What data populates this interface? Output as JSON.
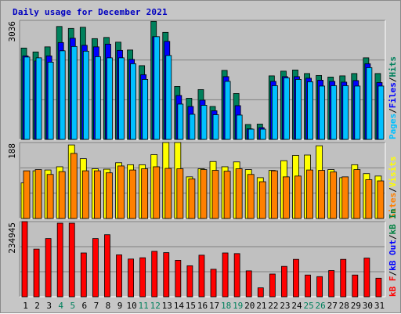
{
  "title": "Daily usage for December 2021",
  "colors": {
    "hits": "#00805c",
    "files": "#0000ff",
    "pages": "#00c0ff",
    "visits": "#ffff00",
    "sites": "#ff8000",
    "kbin": "#008040",
    "kbout": "#0000ff",
    "kbf": "#ff0000",
    "weekend_day": "#00805c",
    "weekday": "#000000"
  },
  "chart_data": [
    {
      "type": "bar",
      "categories": [
        "1",
        "2",
        "3",
        "4",
        "5",
        "6",
        "7",
        "8",
        "9",
        "10",
        "11",
        "12",
        "13",
        "14",
        "15",
        "16",
        "17",
        "18",
        "19",
        "20",
        "21",
        "22",
        "23",
        "24",
        "25",
        "26",
        "27",
        "28",
        "29",
        "30",
        "31"
      ],
      "weekend_days": [
        "4",
        "5",
        "11",
        "12",
        "18",
        "19",
        "25",
        "26"
      ],
      "ymax_label": "3036",
      "ylim": [
        0,
        3036
      ],
      "legend": [
        {
          "label": "Pages",
          "color": "#00c0ff"
        },
        {
          "label": "/",
          "color": "#000000"
        },
        {
          "label": "Files",
          "color": "#0000ff"
        },
        {
          "label": "/",
          "color": "#000000"
        },
        {
          "label": "Hits",
          "color": "#00805c"
        }
      ],
      "series": [
        {
          "name": "Hits",
          "values": [
            2330,
            2230,
            2360,
            2880,
            2830,
            2860,
            2570,
            2600,
            2480,
            2280,
            1880,
            3010,
            2730,
            1350,
            1050,
            1270,
            840,
            1760,
            1170,
            380,
            390,
            1620,
            1740,
            1770,
            1680,
            1630,
            1590,
            1620,
            1680,
            2080,
            1680
          ]
        },
        {
          "name": "Files",
          "values": [
            2130,
            2000,
            2130,
            2470,
            2580,
            2400,
            2360,
            2430,
            2270,
            2040,
            1650,
            2620,
            2500,
            1120,
            840,
            1000,
            730,
            1600,
            860,
            270,
            300,
            1480,
            1600,
            1600,
            1560,
            1510,
            1480,
            1460,
            1500,
            1930,
            1450
          ]
        },
        {
          "name": "Pages",
          "values": [
            2100,
            2080,
            1970,
            2260,
            2370,
            2250,
            2110,
            2080,
            2080,
            1930,
            1530,
            2620,
            2140,
            900,
            640,
            870,
            630,
            1480,
            620,
            260,
            260,
            1370,
            1570,
            1530,
            1470,
            1360,
            1370,
            1370,
            1360,
            1830,
            1360
          ]
        }
      ]
    },
    {
      "type": "bar",
      "categories": [
        "1",
        "2",
        "3",
        "4",
        "5",
        "6",
        "7",
        "8",
        "9",
        "10",
        "11",
        "12",
        "13",
        "14",
        "15",
        "16",
        "17",
        "18",
        "19",
        "20",
        "21",
        "22",
        "23",
        "24",
        "25",
        "26",
        "27",
        "28",
        "29",
        "30",
        "31"
      ],
      "ymax_label": "188",
      "ylim": [
        0,
        188
      ],
      "legend": [
        {
          "label": "Sites",
          "color": "#ff8000"
        },
        {
          "label": "/",
          "color": "#000000"
        },
        {
          "label": "Visits",
          "color": "#ffff00"
        }
      ],
      "series": [
        {
          "name": "Visits",
          "values": [
            88,
            118,
            120,
            128,
            182,
            148,
            123,
            122,
            138,
            133,
            133,
            158,
            188,
            188,
            103,
            123,
            141,
            128,
            140,
            121,
            101,
            119,
            143,
            156,
            157,
            180,
            121,
            101,
            133,
            111,
            105
          ]
        },
        {
          "name": "Sites",
          "values": [
            118,
            121,
            109,
            116,
            161,
            118,
            118,
            113,
            130,
            120,
            123,
            128,
            124,
            123,
            98,
            121,
            119,
            117,
            123,
            109,
            91,
            118,
            103,
            105,
            120,
            119,
            115,
            103,
            121,
            96,
            93
          ]
        }
      ]
    },
    {
      "type": "bar",
      "categories": [
        "1",
        "2",
        "3",
        "4",
        "5",
        "6",
        "7",
        "8",
        "9",
        "10",
        "11",
        "12",
        "13",
        "14",
        "15",
        "16",
        "17",
        "18",
        "19",
        "20",
        "21",
        "22",
        "23",
        "24",
        "25",
        "26",
        "27",
        "28",
        "29",
        "30",
        "31"
      ],
      "ymax_label": "234945",
      "ylim": [
        0,
        234945
      ],
      "legend": [
        {
          "label": "kB F",
          "color": "#ff0000"
        },
        {
          "label": "/",
          "color": "#000000"
        },
        {
          "label": "kB Out",
          "color": "#0000ff"
        },
        {
          "label": "/",
          "color": "#000000"
        },
        {
          "label": "kB In",
          "color": "#008040"
        }
      ],
      "series": [
        {
          "name": "kB F",
          "values": [
            234945,
            149000,
            182000,
            230000,
            230000,
            137000,
            182000,
            194000,
            131000,
            118000,
            122000,
            142000,
            138000,
            114000,
            97000,
            130000,
            86000,
            137000,
            135000,
            81000,
            28000,
            71000,
            95000,
            117000,
            68000,
            63000,
            82000,
            117000,
            68000,
            121000,
            58000
          ]
        }
      ]
    }
  ]
}
